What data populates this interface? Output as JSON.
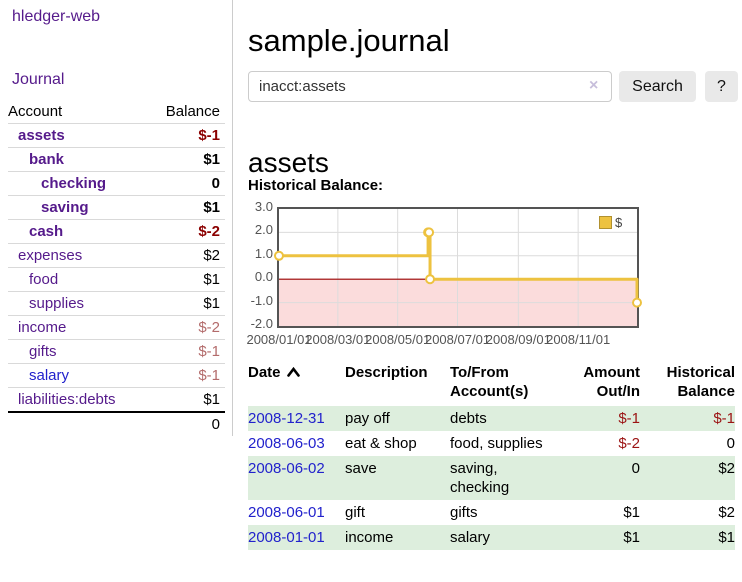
{
  "brand": "hledger-web",
  "nav": {
    "journal": "Journal"
  },
  "sidebar": {
    "col_account": "Account",
    "col_balance": "Balance",
    "accounts": [
      {
        "name": "assets",
        "balance": "$-1",
        "depth": 1,
        "bold": true
      },
      {
        "name": "bank",
        "balance": "$1",
        "depth": 2,
        "bold": true
      },
      {
        "name": "checking",
        "balance": "0",
        "depth": 3,
        "bold": true
      },
      {
        "name": "saving",
        "balance": "$1",
        "depth": 3,
        "bold": true
      },
      {
        "name": "cash",
        "balance": "$-2",
        "depth": 2,
        "bold": true
      },
      {
        "name": "expenses",
        "balance": "$2",
        "depth": 1,
        "bold": false
      },
      {
        "name": "food",
        "balance": "$1",
        "depth": 2,
        "bold": false
      },
      {
        "name": "supplies",
        "balance": "$1",
        "depth": 2,
        "bold": false
      },
      {
        "name": "income",
        "balance": "$-2",
        "depth": 1,
        "bold": false
      },
      {
        "name": "gifts",
        "balance": "$-1",
        "depth": 2,
        "bold": false
      },
      {
        "name": "salary",
        "balance": "$-1",
        "depth": 2,
        "bold": false
      },
      {
        "name": "liabilities:debts",
        "balance": "$1",
        "depth": 1,
        "bold": false
      }
    ],
    "total": "0"
  },
  "main": {
    "title": "sample.journal",
    "search": {
      "value": "inacct:assets",
      "clear_icon": "×",
      "search_label": "Search",
      "help_label": "?"
    },
    "account_title": "assets",
    "chart_title": "Historical Balance:"
  },
  "chart_data": {
    "type": "line",
    "step": true,
    "title": "Historical Balance:",
    "legend_label": "$",
    "legend_position": "top-right",
    "series": [
      {
        "name": "$",
        "color": "#edc240",
        "points": [
          [
            "2008-01-01",
            1
          ],
          [
            "2008-06-01",
            2
          ],
          [
            "2008-06-02",
            2
          ],
          [
            "2008-06-03",
            0
          ],
          [
            "2008-12-31",
            -1
          ]
        ]
      }
    ],
    "x_range": [
      "2008-01-01",
      "2008-12-31"
    ],
    "ylim": [
      -2,
      3
    ],
    "y_ticks": [
      3.0,
      2.0,
      1.0,
      0.0,
      -1.0,
      -2.0
    ],
    "x_ticks": [
      {
        "date": "2008-01-01",
        "label": "2008/01/01"
      },
      {
        "date": "2008-03-01",
        "label": "2008/03/01"
      },
      {
        "date": "2008-05-01",
        "label": "2008/05/01"
      },
      {
        "date": "2008-07-01",
        "label": "2008/07/01"
      },
      {
        "date": "2008-09-01",
        "label": "2008/09/01"
      },
      {
        "date": "2008-11-01",
        "label": "2008/11/01"
      }
    ],
    "grid": true,
    "zero_line_color": "#990000",
    "negative_fill": "#fbdcdc",
    "grid_color": "#dcdcdc",
    "border_color": "#545454"
  },
  "register": {
    "headers": {
      "date": "Date",
      "description": "Description",
      "accounts": "To/From Account(s)",
      "amount": "Amount Out/In",
      "balance": "Historical Balance"
    },
    "rows": [
      {
        "date": "2008-12-31",
        "description": "pay off",
        "accounts": "debts",
        "amount": "$-1",
        "balance": "$-1"
      },
      {
        "date": "2008-06-03",
        "description": "eat & shop",
        "accounts": "food, supplies",
        "amount": "$-2",
        "balance": "0"
      },
      {
        "date": "2008-06-02",
        "description": "save",
        "accounts": "saving, checking",
        "amount": "0",
        "balance": "$2"
      },
      {
        "date": "2008-06-01",
        "description": "gift",
        "accounts": "gifts",
        "amount": "$1",
        "balance": "$2"
      },
      {
        "date": "2008-01-01",
        "description": "income",
        "accounts": "salary",
        "amount": "$1",
        "balance": "$1"
      }
    ]
  }
}
